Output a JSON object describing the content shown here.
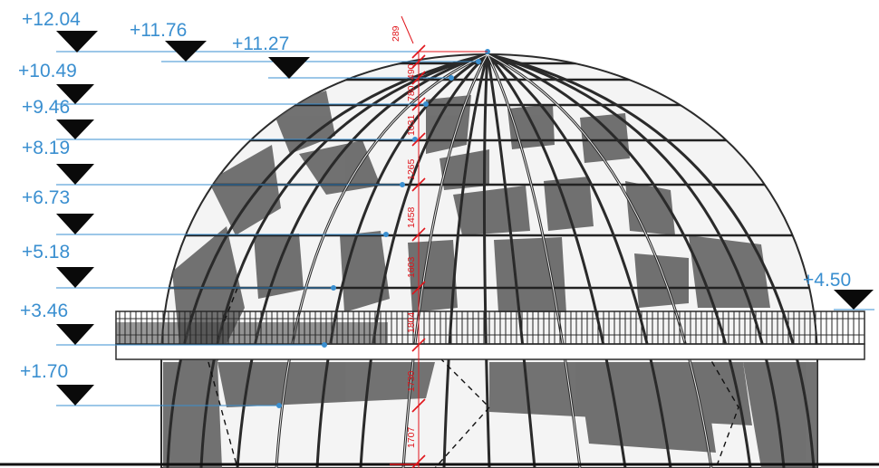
{
  "levels_left": [
    {
      "label": "+12.04"
    },
    {
      "label": "+11.76"
    },
    {
      "label": "+11.27"
    },
    {
      "label": "+10.49"
    },
    {
      "label": "+9.46"
    },
    {
      "label": "+8.19"
    },
    {
      "label": "+6.73"
    },
    {
      "label": "+5.18"
    },
    {
      "label": "+3.46"
    },
    {
      "label": "+1.70"
    }
  ],
  "level_right": {
    "label": "+4.50"
  },
  "dimensions": [
    "289",
    "490",
    "780",
    "1031",
    "1265",
    "1458",
    "1603",
    "1804",
    "1730",
    "1707"
  ],
  "colors": {
    "level": "#3a8fd0",
    "dimension": "#e0151b",
    "structure": "#333333"
  }
}
